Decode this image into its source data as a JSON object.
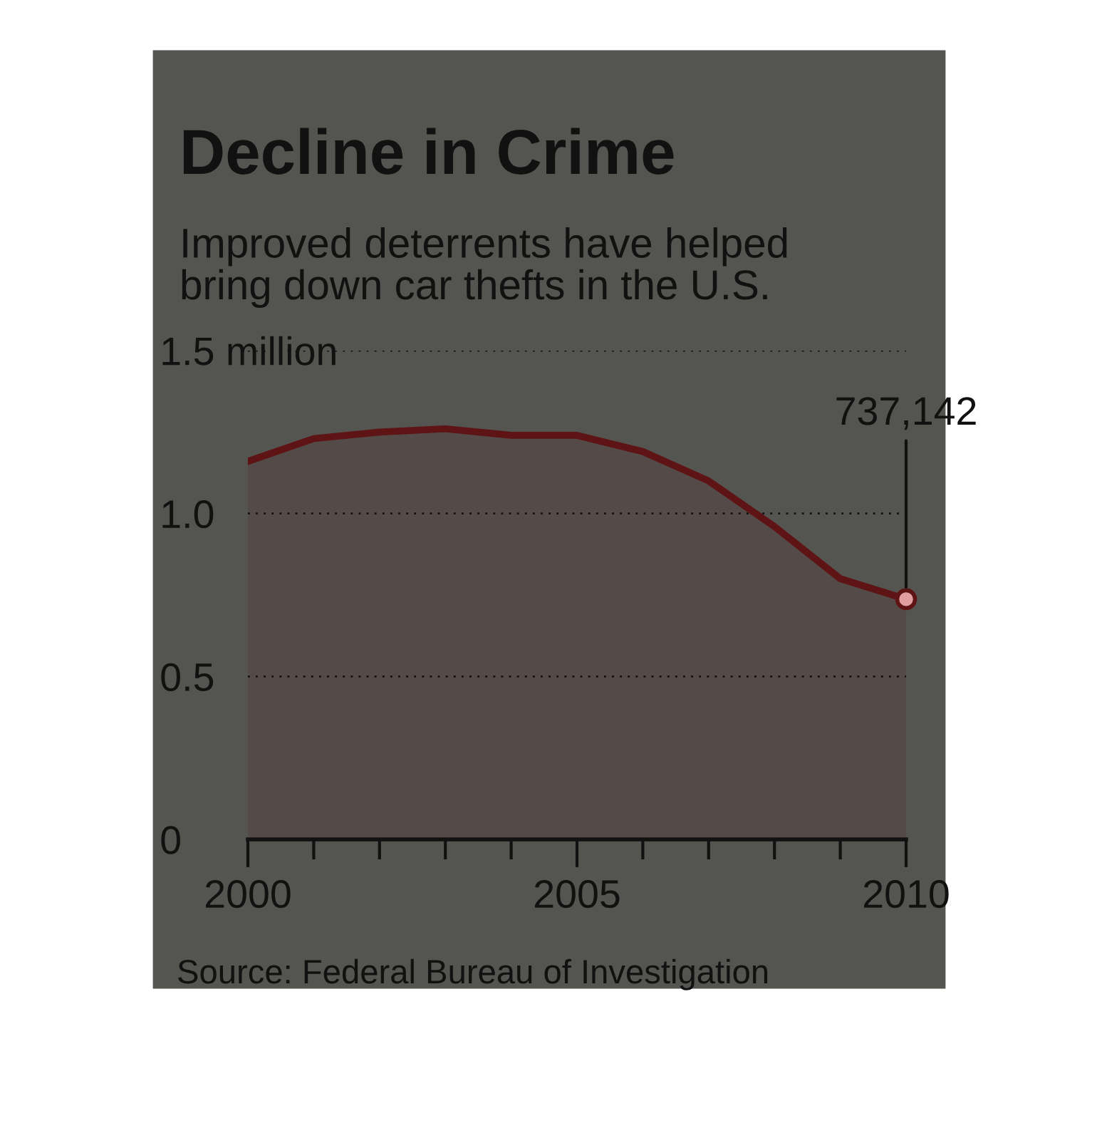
{
  "chart_data": {
    "type": "area",
    "title": "Decline in Crime",
    "subtitle": "Improved deterrents have helped\nbring down car thefts in the U.S.",
    "x": [
      2000,
      2001,
      2002,
      2003,
      2004,
      2005,
      2006,
      2007,
      2008,
      2009,
      2010
    ],
    "series": [
      {
        "color": "#5e1414",
        "values": [
          1.16,
          1.23,
          1.25,
          1.26,
          1.24,
          1.24,
          1.19,
          1.1,
          0.96,
          0.8,
          0.737142
        ]
      }
    ],
    "xlim": [
      2000,
      2010
    ],
    "xticks": [
      2000,
      {
        "value": 2001,
        "label": null
      },
      {
        "value": 2002,
        "label": null
      },
      {
        "value": 2003,
        "label": null
      },
      {
        "value": 2004,
        "label": null
      },
      2005,
      {
        "value": 2006,
        "label": null
      },
      {
        "value": 2007,
        "label": null
      },
      {
        "value": 2008,
        "label": null
      },
      {
        "value": 2009,
        "label": null
      },
      2010
    ],
    "ylim": [
      0,
      1.5
    ],
    "yticks": [
      0,
      0.5,
      {
        "value": 1,
        "label": "1.0"
      },
      {
        "value": 1.5,
        "label": "1.5 million"
      }
    ],
    "grid": "y",
    "annotations": [
      {
        "text": "737,142",
        "x": 2010,
        "y": 0.737142
      },
      "Source: Federal Bureau of Investigation"
    ]
  }
}
